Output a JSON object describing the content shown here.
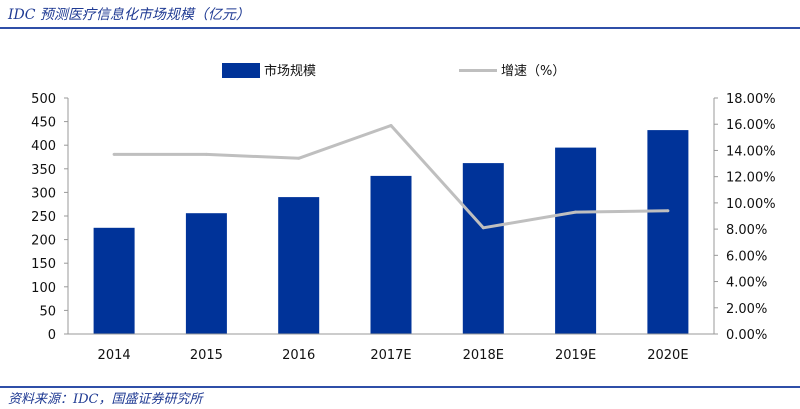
{
  "header": {
    "title": "IDC 预测医疗信息化市场规模（亿元）"
  },
  "footer": {
    "source": "资料来源：IDC，国盛证券研究所"
  },
  "chart_data": {
    "type": "bar",
    "categories": [
      "2014",
      "2015",
      "2016",
      "2017E",
      "2018E",
      "2019E",
      "2020E"
    ],
    "series": [
      {
        "name": "市场规模",
        "type": "bar",
        "axis": "left",
        "color": "#003399",
        "values": [
          225,
          256,
          290,
          335,
          362,
          395,
          432
        ]
      },
      {
        "name": "增速（%）",
        "type": "line",
        "axis": "right",
        "color": "#bfbfbf",
        "values": [
          13.7,
          13.7,
          13.4,
          15.9,
          8.1,
          9.3,
          9.4
        ]
      }
    ],
    "y_left": {
      "min": 0,
      "max": 500,
      "step": 50,
      "ticks": [
        "0",
        "50",
        "100",
        "150",
        "200",
        "250",
        "300",
        "350",
        "400",
        "450",
        "500"
      ]
    },
    "y_right": {
      "min": 0,
      "max": 18,
      "step": 2,
      "ticks": [
        "0.00%",
        "2.00%",
        "4.00%",
        "6.00%",
        "8.00%",
        "10.00%",
        "12.00%",
        "14.00%",
        "16.00%",
        "18.00%"
      ]
    },
    "legend": {
      "position": "top-center"
    },
    "grid": false
  }
}
